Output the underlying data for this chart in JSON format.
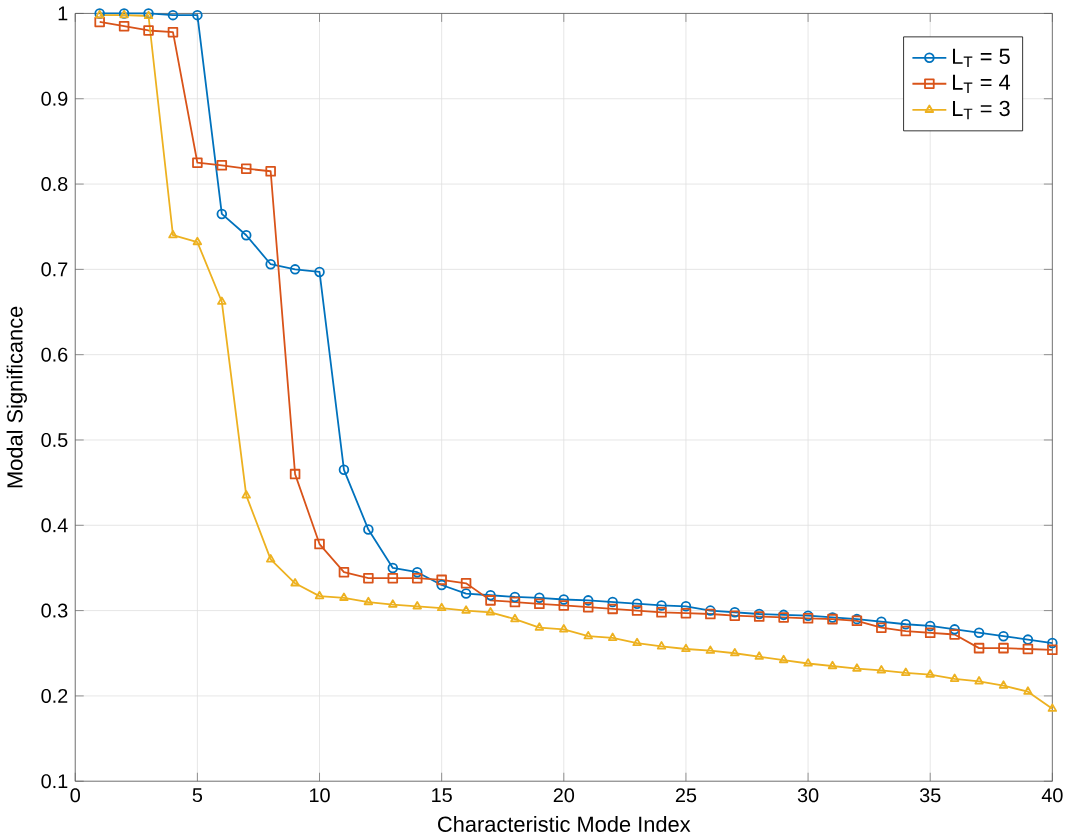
{
  "chart_data": {
    "type": "line",
    "xlabel": "Characteristic Mode Index",
    "ylabel": "Modal Significance",
    "x": [
      1,
      2,
      3,
      4,
      5,
      6,
      7,
      8,
      9,
      10,
      11,
      12,
      13,
      14,
      15,
      16,
      17,
      18,
      19,
      20,
      21,
      22,
      23,
      24,
      25,
      26,
      27,
      28,
      29,
      30,
      31,
      32,
      33,
      34,
      35,
      36,
      37,
      38,
      39,
      40
    ],
    "series": [
      {
        "name": "L$_{T}$ = 5",
        "color": "#0072bd",
        "marker": "circle",
        "values": [
          1.0,
          1.0,
          1.0,
          0.998,
          0.998,
          0.765,
          0.74,
          0.706,
          0.7,
          0.697,
          0.465,
          0.395,
          0.35,
          0.345,
          0.33,
          0.32,
          0.318,
          0.316,
          0.315,
          0.313,
          0.312,
          0.31,
          0.308,
          0.306,
          0.305,
          0.3,
          0.298,
          0.296,
          0.295,
          0.294,
          0.292,
          0.29,
          0.287,
          0.284,
          0.282,
          0.278,
          0.274,
          0.27,
          0.266,
          0.262
        ]
      },
      {
        "name": "L$_{T}$ = 4",
        "color": "#d95319",
        "marker": "square",
        "values": [
          0.99,
          0.985,
          0.98,
          0.978,
          0.825,
          0.822,
          0.818,
          0.815,
          0.46,
          0.378,
          0.345,
          0.338,
          0.338,
          0.338,
          0.336,
          0.332,
          0.312,
          0.31,
          0.308,
          0.306,
          0.304,
          0.302,
          0.3,
          0.298,
          0.297,
          0.296,
          0.294,
          0.293,
          0.292,
          0.291,
          0.29,
          0.288,
          0.28,
          0.276,
          0.274,
          0.272,
          0.256,
          0.256,
          0.255,
          0.254
        ]
      },
      {
        "name": "L$_{T}$ = 3",
        "color": "#edb120",
        "marker": "triangle",
        "values": [
          0.998,
          0.998,
          0.997,
          0.74,
          0.732,
          0.662,
          0.435,
          0.36,
          0.332,
          0.317,
          0.315,
          0.31,
          0.307,
          0.305,
          0.303,
          0.3,
          0.298,
          0.29,
          0.28,
          0.278,
          0.27,
          0.268,
          0.262,
          0.258,
          0.255,
          0.253,
          0.25,
          0.246,
          0.242,
          0.238,
          0.235,
          0.232,
          0.23,
          0.227,
          0.225,
          0.22,
          0.217,
          0.212,
          0.205,
          0.185
        ]
      }
    ],
    "xlim": [
      0,
      40
    ],
    "xticks": [
      0,
      5,
      10,
      15,
      20,
      25,
      30,
      35,
      40
    ],
    "ylim": [
      0.1,
      1
    ],
    "yticks": [
      0.1,
      0.2,
      0.3,
      0.4,
      0.5,
      0.6,
      0.7,
      0.8,
      0.9,
      1
    ],
    "grid": true,
    "legend": "top right",
    "line_style": "solid"
  }
}
